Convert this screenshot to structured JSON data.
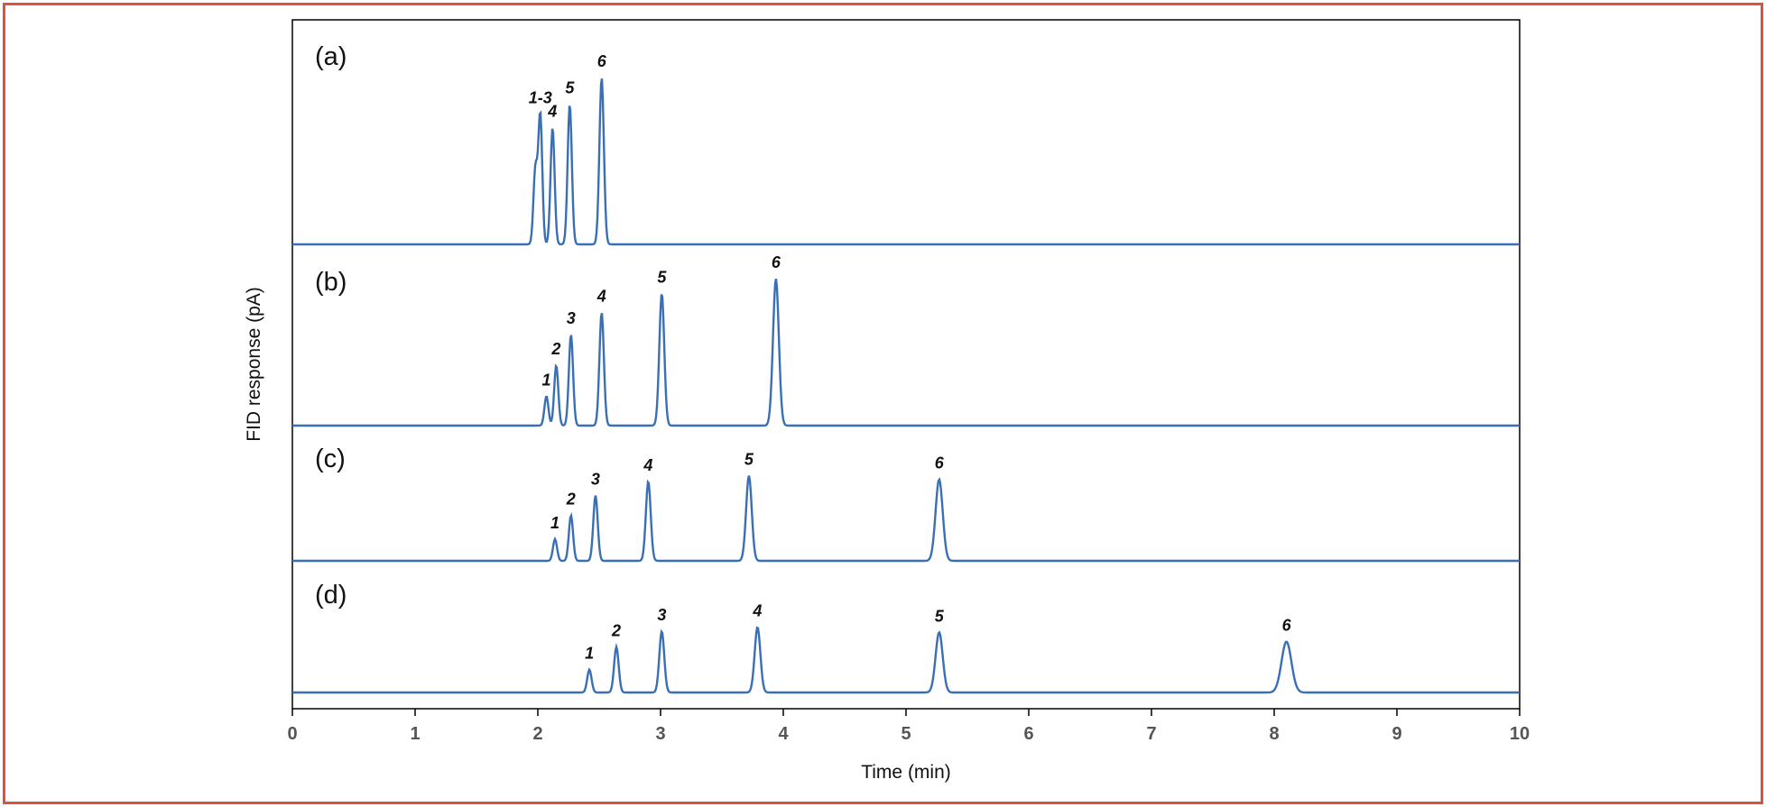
{
  "chart_data": {
    "type": "line",
    "title": "",
    "xlabel": "Time (min)",
    "ylabel": "FID response (pA)",
    "xlim": [
      0,
      10
    ],
    "x_ticks": [
      "0",
      "1",
      "2",
      "3",
      "4",
      "5",
      "6",
      "7",
      "8",
      "9",
      "10"
    ],
    "grid": false,
    "line_color": "#3a6fb5",
    "frame_color": "#d9533f",
    "panels": [
      {
        "label": "(a)",
        "peaks": [
          {
            "label": "1-3",
            "t": 2.02,
            "height": 0.78
          },
          {
            "label": "",
            "t": 1.98,
            "height": 0.45
          },
          {
            "label": "4",
            "t": 2.12,
            "height": 0.7
          },
          {
            "label": "5",
            "t": 2.26,
            "height": 0.84
          },
          {
            "label": "6",
            "t": 2.52,
            "height": 1.0
          }
        ]
      },
      {
        "label": "(b)",
        "peaks": [
          {
            "label": "1",
            "t": 2.07,
            "height": 0.2
          },
          {
            "label": "2",
            "t": 2.15,
            "height": 0.41
          },
          {
            "label": "3",
            "t": 2.27,
            "height": 0.62
          },
          {
            "label": "4",
            "t": 2.52,
            "height": 0.77
          },
          {
            "label": "5",
            "t": 3.01,
            "height": 0.9
          },
          {
            "label": "6",
            "t": 3.94,
            "height": 1.0
          }
        ]
      },
      {
        "label": "(c)",
        "peaks": [
          {
            "label": "1",
            "t": 2.14,
            "height": 0.23
          },
          {
            "label": "2",
            "t": 2.27,
            "height": 0.48
          },
          {
            "label": "3",
            "t": 2.47,
            "height": 0.69
          },
          {
            "label": "4",
            "t": 2.9,
            "height": 0.84
          },
          {
            "label": "5",
            "t": 3.72,
            "height": 0.9
          },
          {
            "label": "6",
            "t": 5.27,
            "height": 0.86
          }
        ]
      },
      {
        "label": "(d)",
        "peaks": [
          {
            "label": "1",
            "t": 2.42,
            "height": 0.22
          },
          {
            "label": "2",
            "t": 2.64,
            "height": 0.44
          },
          {
            "label": "3",
            "t": 3.01,
            "height": 0.59
          },
          {
            "label": "4",
            "t": 3.79,
            "height": 0.63
          },
          {
            "label": "5",
            "t": 5.27,
            "height": 0.58
          },
          {
            "label": "6",
            "t": 8.1,
            "height": 0.49
          }
        ]
      }
    ]
  }
}
